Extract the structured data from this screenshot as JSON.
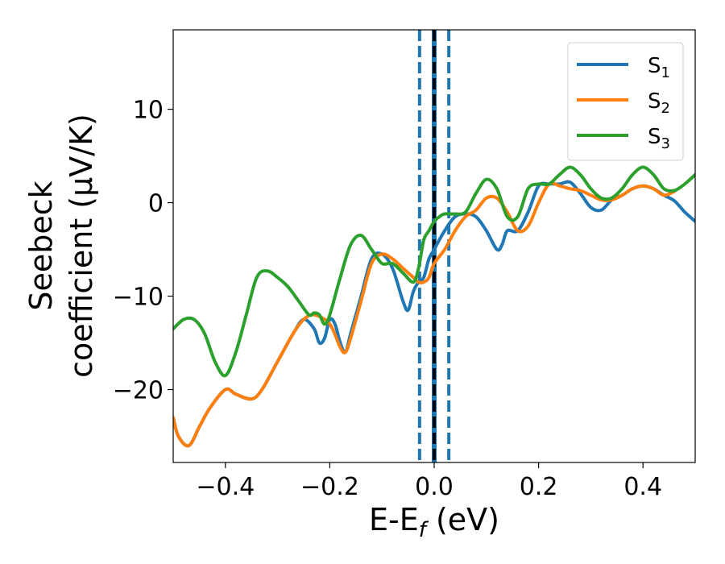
{
  "chart_data": {
    "type": "line",
    "xlabel": {
      "main": "E-E",
      "sub": "f",
      "unit": " (eV)"
    },
    "ylabel": {
      "line1": "Seebeck",
      "line2": "coefficient  (μV/K)"
    },
    "xlim": [
      -0.5,
      0.5
    ],
    "ylim": [
      -27.8,
      18.5
    ],
    "xticks": [
      -0.4,
      -0.2,
      0.0,
      0.2,
      0.4
    ],
    "xtick_labels": [
      "−0.4",
      "−0.2",
      "0.0",
      "0.2",
      "0.4"
    ],
    "yticks": [
      -20,
      -10,
      0,
      10
    ],
    "ytick_labels": [
      "−20",
      "−10",
      "0",
      "10"
    ],
    "grid": false,
    "legend": "top-right",
    "vlines": [
      {
        "x": -0.028,
        "style": "dashed",
        "color": "#1f77b4"
      },
      {
        "x": 0.028,
        "style": "dashed",
        "color": "#1f77b4"
      },
      {
        "x": 0.0,
        "style": "solid",
        "color": "#1f77b4"
      },
      {
        "x": 0.0,
        "style": "dashed",
        "color": "#000000"
      }
    ],
    "series": [
      {
        "name": "S",
        "sub": "1",
        "color": "#1f77b4",
        "x": [
          -0.5,
          -0.49,
          -0.47,
          -0.45,
          -0.43,
          -0.4,
          -0.38,
          -0.35,
          -0.33,
          -0.3,
          -0.27,
          -0.25,
          -0.23,
          -0.22,
          -0.21,
          -0.2,
          -0.19,
          -0.18,
          -0.17,
          -0.16,
          -0.14,
          -0.12,
          -0.1,
          -0.08,
          -0.06,
          -0.05,
          -0.04,
          -0.03,
          -0.02,
          -0.01,
          0.0,
          0.02,
          0.04,
          0.06,
          0.08,
          0.1,
          0.12,
          0.13,
          0.14,
          0.16,
          0.18,
          0.2,
          0.22,
          0.24,
          0.26,
          0.28,
          0.3,
          0.32,
          0.34,
          0.36,
          0.38,
          0.4,
          0.42,
          0.44,
          0.46,
          0.48,
          0.5
        ],
        "y": [
          -23,
          -25,
          -26,
          -24,
          -22,
          -20,
          -20.5,
          -21,
          -20,
          -17,
          -14,
          -12.5,
          -13.5,
          -15,
          -14.5,
          -12.5,
          -13,
          -15,
          -16,
          -14,
          -10,
          -6,
          -5.5,
          -7,
          -10.5,
          -11.5,
          -9.5,
          -8.5,
          -8,
          -6,
          -5,
          -3,
          -1.5,
          -1.2,
          -1.5,
          -3,
          -5,
          -4.5,
          -3,
          -3,
          -1,
          1.8,
          2,
          2,
          2.2,
          1,
          -0.5,
          -0.8,
          0.3,
          0.8,
          1.5,
          1.8,
          1.5,
          0.8,
          0.2,
          -1,
          -2
        ]
      },
      {
        "name": "S",
        "sub": "2",
        "color": "#ff7f0e",
        "x": [
          -0.5,
          -0.49,
          -0.47,
          -0.45,
          -0.43,
          -0.4,
          -0.38,
          -0.35,
          -0.33,
          -0.3,
          -0.27,
          -0.25,
          -0.23,
          -0.2,
          -0.18,
          -0.17,
          -0.16,
          -0.14,
          -0.12,
          -0.1,
          -0.08,
          -0.06,
          -0.04,
          -0.03,
          -0.02,
          -0.01,
          0.0,
          0.02,
          0.04,
          0.06,
          0.08,
          0.1,
          0.12,
          0.14,
          0.16,
          0.18,
          0.2,
          0.22,
          0.24,
          0.26,
          0.28,
          0.3,
          0.32,
          0.34,
          0.36,
          0.38,
          0.4,
          0.42,
          0.44,
          0.46
        ],
        "y": [
          -23,
          -25,
          -26,
          -24,
          -22,
          -20,
          -20.5,
          -21,
          -20,
          -17,
          -14,
          -12.5,
          -12,
          -13,
          -15.5,
          -16,
          -14.5,
          -10.5,
          -6.5,
          -5.5,
          -6,
          -7,
          -8,
          -8.5,
          -8.5,
          -8,
          -6.5,
          -5,
          -3,
          -1.5,
          -0.8,
          0.5,
          0.5,
          -1,
          -3,
          -2.5,
          0,
          2,
          1.8,
          1.5,
          1.3,
          0.8,
          0.3,
          0.3,
          0.8,
          1.5,
          1.8,
          1.5,
          0.8,
          1.2
        ]
      },
      {
        "name": "S",
        "sub": "3",
        "color": "#2ca02c",
        "x": [
          -0.5,
          -0.48,
          -0.46,
          -0.44,
          -0.42,
          -0.4,
          -0.38,
          -0.36,
          -0.34,
          -0.32,
          -0.3,
          -0.28,
          -0.26,
          -0.24,
          -0.23,
          -0.22,
          -0.21,
          -0.2,
          -0.18,
          -0.16,
          -0.14,
          -0.12,
          -0.1,
          -0.08,
          -0.06,
          -0.04,
          -0.03,
          -0.02,
          -0.01,
          0.0,
          0.01,
          0.02,
          0.04,
          0.06,
          0.08,
          0.1,
          0.12,
          0.14,
          0.16,
          0.18,
          0.2,
          0.22,
          0.24,
          0.26,
          0.28,
          0.3,
          0.32,
          0.34,
          0.36,
          0.38,
          0.4,
          0.42,
          0.44,
          0.46,
          0.48,
          0.5
        ],
        "y": [
          -13.5,
          -12.5,
          -12.5,
          -14,
          -17,
          -18.5,
          -16,
          -12,
          -8,
          -7.3,
          -8,
          -9,
          -10.5,
          -12,
          -11.8,
          -12,
          -13,
          -12,
          -8,
          -4.5,
          -3.5,
          -5,
          -6.5,
          -6.5,
          -7.5,
          -8.5,
          -7,
          -4,
          -3,
          -2,
          -1.5,
          -1.2,
          -1.2,
          -1,
          1,
          2.5,
          1.5,
          -1.5,
          -1.5,
          1.5,
          2,
          2,
          3,
          3.8,
          3,
          1.5,
          0.5,
          0.5,
          1.5,
          3,
          3.8,
          3,
          1.5,
          1.3,
          2,
          3
        ]
      }
    ]
  }
}
